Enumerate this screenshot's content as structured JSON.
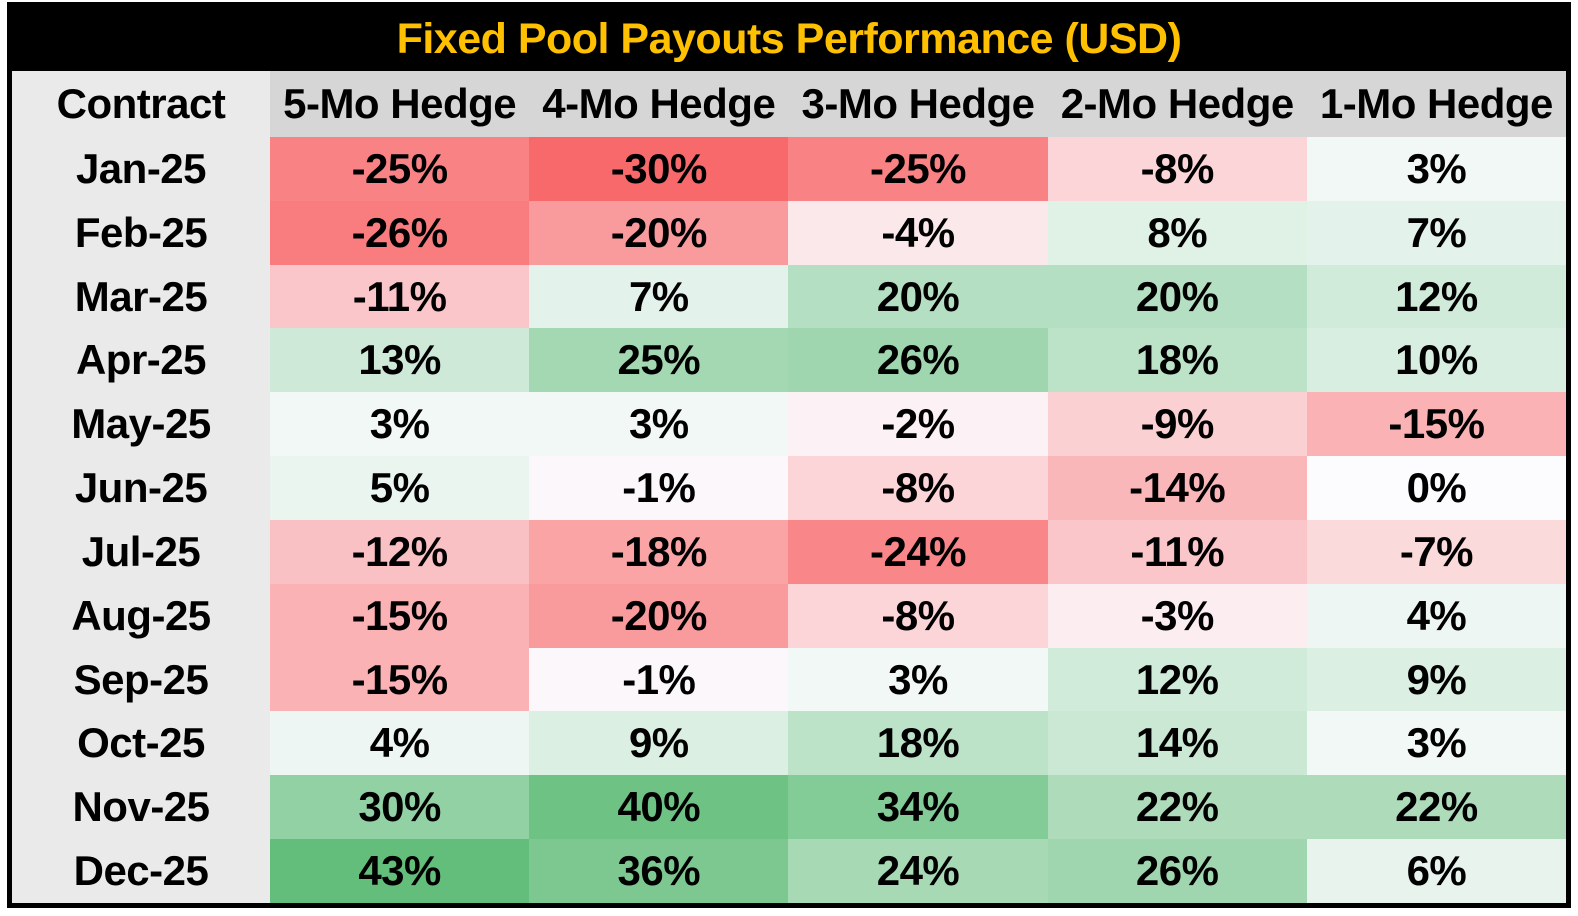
{
  "title_bar": {
    "title": "Fixed Pool Payouts Performance (USD)"
  },
  "colors": {
    "title_text": "#FFC000",
    "title_bg": "#000000",
    "border": "#000000",
    "header_cell_bg": "#D6D6D6",
    "label_col_bg": "#EAEAEA",
    "cell_text": "#000000",
    "scale_min_red": "#F8696B",
    "scale_mid_white": "#FCFCFF",
    "scale_max_green": "#63BE7B"
  },
  "table": {
    "columns": [
      "Contract",
      "5-Mo Hedge",
      "4-Mo Hedge",
      "3-Mo Hedge",
      "2-Mo Hedge",
      "1-Mo Hedge"
    ],
    "rows": [
      {
        "label": "Jan-25",
        "values": [
          "-25%",
          "-30%",
          "-25%",
          "-8%",
          "3%"
        ],
        "colors": [
          "#F98284",
          "#F8696B",
          "#F98284",
          "#FBD5D8",
          "#F1F8F6"
        ]
      },
      {
        "label": "Feb-25",
        "values": [
          "-26%",
          "-20%",
          "-4%",
          "8%",
          "7%"
        ],
        "colors": [
          "#F97D7F",
          "#F99A9C",
          "#FBE8EB",
          "#E0F1E6",
          "#E3F2EA"
        ]
      },
      {
        "label": "Mar-25",
        "values": [
          "-11%",
          "7%",
          "20%",
          "20%",
          "12%"
        ],
        "colors": [
          "#FAC6C9",
          "#E3F2EA",
          "#B5DFC2",
          "#B5DFC2",
          "#D1EBDA"
        ]
      },
      {
        "label": "Apr-25",
        "values": [
          "13%",
          "25%",
          "26%",
          "18%",
          "10%"
        ],
        "colors": [
          "#CEE9D7",
          "#A3D8B2",
          "#A0D6AF",
          "#BCE2C8",
          "#D8EEE0"
        ]
      },
      {
        "label": "May-25",
        "values": [
          "3%",
          "3%",
          "-2%",
          "-9%",
          "-15%"
        ],
        "colors": [
          "#F1F8F6",
          "#F1F8F6",
          "#FCF2F5",
          "#FBD0D3",
          "#FAB2B5"
        ]
      },
      {
        "label": "Jun-25",
        "values": [
          "5%",
          "-1%",
          "-8%",
          "-14%",
          "0%"
        ],
        "colors": [
          "#EAF5F0",
          "#FCF7FA",
          "#FBD5D8",
          "#FAB7BA",
          "#FCFCFF"
        ]
      },
      {
        "label": "Jul-25",
        "values": [
          "-12%",
          "-18%",
          "-24%",
          "-11%",
          "-7%"
        ],
        "colors": [
          "#FAC1C4",
          "#FAA4A6",
          "#F98689",
          "#FAC6C9",
          "#FBDADC"
        ]
      },
      {
        "label": "Aug-25",
        "values": [
          "-15%",
          "-20%",
          "-8%",
          "-3%",
          "4%"
        ],
        "colors": [
          "#FAB2B5",
          "#F99A9C",
          "#FBD5D8",
          "#FCEDF0",
          "#EEF6F3"
        ]
      },
      {
        "label": "Sep-25",
        "values": [
          "-15%",
          "-1%",
          "3%",
          "12%",
          "9%"
        ],
        "colors": [
          "#FAB2B5",
          "#FCF7FA",
          "#F1F8F6",
          "#D1EBDA",
          "#DCEFE3"
        ]
      },
      {
        "label": "Oct-25",
        "values": [
          "4%",
          "9%",
          "18%",
          "14%",
          "3%"
        ],
        "colors": [
          "#EEF6F3",
          "#DCEFE3",
          "#BCE2C8",
          "#CAE8D4",
          "#F1F8F6"
        ]
      },
      {
        "label": "Nov-25",
        "values": [
          "30%",
          "40%",
          "34%",
          "22%",
          "22%"
        ],
        "colors": [
          "#91D1A3",
          "#6EC284",
          "#83CB97",
          "#AEDCBB",
          "#AEDCBB"
        ]
      },
      {
        "label": "Dec-25",
        "values": [
          "43%",
          "36%",
          "24%",
          "26%",
          "6%"
        ],
        "colors": [
          "#63BE7B",
          "#7CC890",
          "#A7D9B5",
          "#A0D6AF",
          "#E7F3EC"
        ]
      }
    ]
  },
  "chart_data": {
    "type": "heatmap",
    "title": "Fixed Pool Payouts Performance (USD)",
    "row_header": "Contract",
    "columns": [
      "5-Mo Hedge",
      "4-Mo Hedge",
      "3-Mo Hedge",
      "2-Mo Hedge",
      "1-Mo Hedge"
    ],
    "rows": [
      "Jan-25",
      "Feb-25",
      "Mar-25",
      "Apr-25",
      "May-25",
      "Jun-25",
      "Jul-25",
      "Aug-25",
      "Sep-25",
      "Oct-25",
      "Nov-25",
      "Dec-25"
    ],
    "values_pct": [
      [
        -25,
        -30,
        -25,
        -8,
        3
      ],
      [
        -26,
        -20,
        -4,
        8,
        7
      ],
      [
        -11,
        7,
        20,
        20,
        12
      ],
      [
        13,
        25,
        26,
        18,
        10
      ],
      [
        3,
        3,
        -2,
        -9,
        -15
      ],
      [
        5,
        -1,
        -8,
        -14,
        0
      ],
      [
        -12,
        -18,
        -24,
        -11,
        -7
      ],
      [
        -15,
        -20,
        -8,
        -3,
        4
      ],
      [
        -15,
        -1,
        3,
        12,
        9
      ],
      [
        4,
        9,
        18,
        14,
        3
      ],
      [
        30,
        40,
        34,
        22,
        22
      ],
      [
        43,
        36,
        24,
        26,
        6
      ]
    ],
    "color_scale": {
      "min": {
        "value": -30,
        "color": "#F8696B"
      },
      "mid": {
        "value": 0,
        "color": "#FCFCFF"
      },
      "max": {
        "value": 43,
        "color": "#63BE7B"
      }
    },
    "legend_position": "none",
    "grid": false
  }
}
